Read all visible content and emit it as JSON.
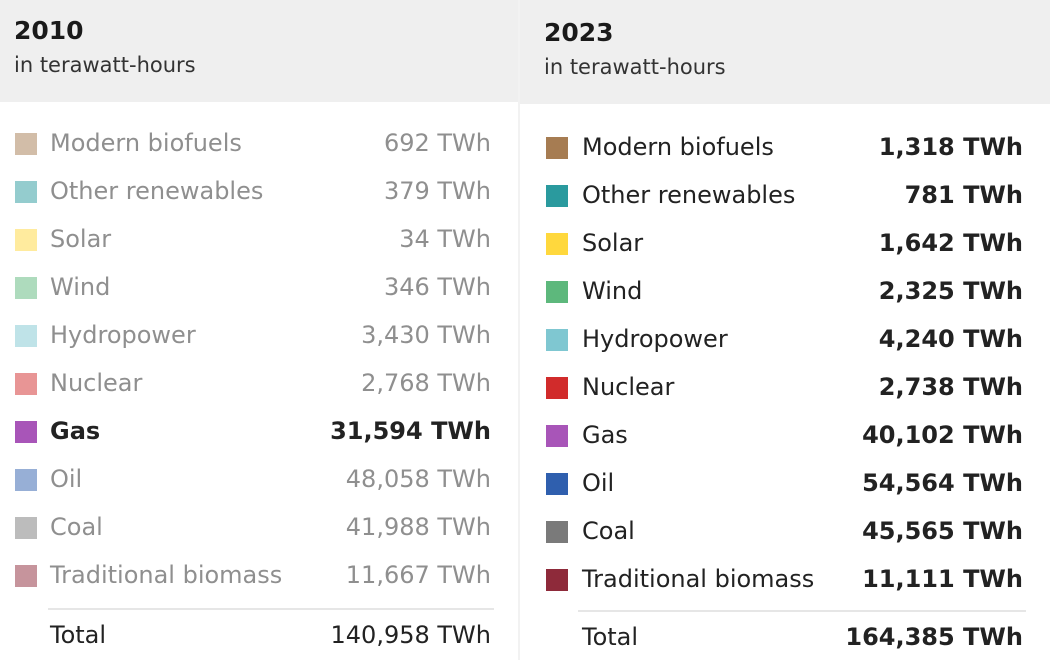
{
  "chart_data": {
    "type": "table",
    "unit": "TWh",
    "panels": [
      {
        "title": "2010",
        "subtitle": "in terawatt-hours",
        "highlighted": "Gas",
        "rows": [
          {
            "label": "Modern biofuels",
            "value": 692,
            "display": "692 TWh",
            "color": "#a67c52"
          },
          {
            "label": "Other renewables",
            "value": 379,
            "display": "379 TWh",
            "color": "#2a9a9e"
          },
          {
            "label": "Solar",
            "value": 34,
            "display": "34 TWh",
            "color": "#ffd83d"
          },
          {
            "label": "Wind",
            "value": 346,
            "display": "346 TWh",
            "color": "#5db87c"
          },
          {
            "label": "Hydropower",
            "value": 3430,
            "display": "3,430 TWh",
            "color": "#7fc7d1"
          },
          {
            "label": "Nuclear",
            "value": 2768,
            "display": "2,768 TWh",
            "color": "#d12b2b"
          },
          {
            "label": "Gas",
            "value": 31594,
            "display": "31,594 TWh",
            "color": "#a855b8"
          },
          {
            "label": "Oil",
            "value": 48058,
            "display": "48,058 TWh",
            "color": "#2f5fae"
          },
          {
            "label": "Coal",
            "value": 41988,
            "display": "41,988 TWh",
            "color": "#7a7a7a"
          },
          {
            "label": "Traditional biomass",
            "value": 11667,
            "display": "11,667 TWh",
            "color": "#8e2a3a"
          }
        ],
        "total_label": "Total",
        "total_value": 140958,
        "total_display": "140,958 TWh"
      },
      {
        "title": "2023",
        "subtitle": "in terawatt-hours",
        "highlighted": "",
        "rows": [
          {
            "label": "Modern biofuels",
            "value": 1318,
            "display": "1,318 TWh",
            "color": "#a67c52"
          },
          {
            "label": "Other renewables",
            "value": 781,
            "display": "781 TWh",
            "color": "#2a9a9e"
          },
          {
            "label": "Solar",
            "value": 1642,
            "display": "1,642 TWh",
            "color": "#ffd83d"
          },
          {
            "label": "Wind",
            "value": 2325,
            "display": "2,325 TWh",
            "color": "#5db87c"
          },
          {
            "label": "Hydropower",
            "value": 4240,
            "display": "4,240 TWh",
            "color": "#7fc7d1"
          },
          {
            "label": "Nuclear",
            "value": 2738,
            "display": "2,738 TWh",
            "color": "#d12b2b"
          },
          {
            "label": "Gas",
            "value": 40102,
            "display": "40,102 TWh",
            "color": "#a855b8"
          },
          {
            "label": "Oil",
            "value": 54564,
            "display": "54,564 TWh",
            "color": "#2f5fae"
          },
          {
            "label": "Coal",
            "value": 45565,
            "display": "45,565 TWh",
            "color": "#7a7a7a"
          },
          {
            "label": "Traditional biomass",
            "value": 11111,
            "display": "11,111 TWh",
            "color": "#8e2a3a"
          }
        ],
        "total_label": "Total",
        "total_value": 164385,
        "total_display": "164,385 TWh"
      }
    ]
  }
}
